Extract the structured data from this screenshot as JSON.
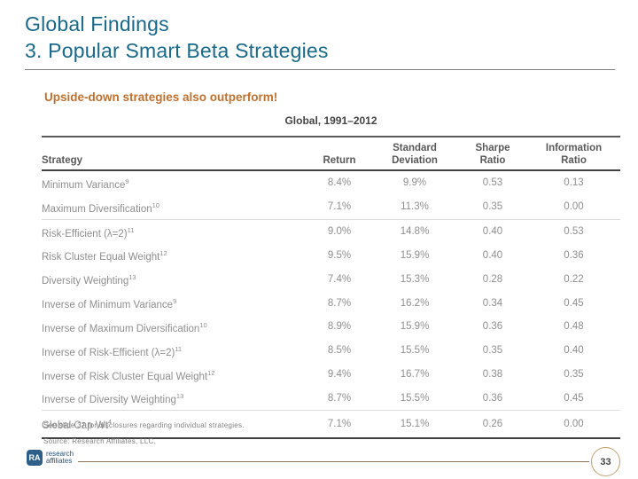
{
  "header": {
    "title_line1": "Global Findings",
    "title_line2": "3. Popular Smart Beta Strategies"
  },
  "subtitle": "Upside-down strategies also outperform!",
  "chart_data": {
    "type": "table",
    "title": "Global, 1991–2012",
    "columns": [
      "Strategy",
      "Return",
      "Standard\nDeviation",
      "Sharpe\nRatio",
      "Information\nRatio"
    ],
    "rows": [
      {
        "strategy": "Minimum Variance",
        "sup": "9",
        "values": [
          "8.4%",
          "9.9%",
          "0.53",
          "0.13"
        ],
        "group_start": false
      },
      {
        "strategy": "Maximum Diversification",
        "sup": "10",
        "values": [
          "7.1%",
          "11.3%",
          "0.35",
          "0.00"
        ],
        "group_start": false
      },
      {
        "strategy": "Risk-Efficient (λ=2)",
        "sup": "11",
        "values": [
          "9.0%",
          "14.8%",
          "0.40",
          "0.53"
        ],
        "group_start": true
      },
      {
        "strategy": "Risk Cluster Equal Weight",
        "sup": "12",
        "values": [
          "9.5%",
          "15.9%",
          "0.40",
          "0.36"
        ],
        "group_start": false
      },
      {
        "strategy": "Diversity Weighting",
        "sup": "13",
        "values": [
          "7.4%",
          "15.3%",
          "0.28",
          "0.22"
        ],
        "group_start": false
      },
      {
        "strategy": "Inverse of Minimum Variance",
        "sup": "9",
        "values": [
          "8.7%",
          "16.2%",
          "0.34",
          "0.45"
        ],
        "group_start": false
      },
      {
        "strategy": "Inverse of Maximum Diversification",
        "sup": "10",
        "values": [
          "8.9%",
          "15.9%",
          "0.36",
          "0.48"
        ],
        "group_start": false
      },
      {
        "strategy": "Inverse of Risk-Efficient (λ=2)",
        "sup": "11",
        "values": [
          "8.5%",
          "15.5%",
          "0.35",
          "0.40"
        ],
        "group_start": false
      },
      {
        "strategy": "Inverse of Risk Cluster Equal Weight",
        "sup": "12",
        "values": [
          "9.4%",
          "16.7%",
          "0.38",
          "0.35"
        ],
        "group_start": false
      },
      {
        "strategy": "Inverse of Diversity Weighting",
        "sup": "13",
        "values": [
          "8.7%",
          "15.5%",
          "0.36",
          "0.45"
        ],
        "group_start": false
      },
      {
        "strategy": "Global Cap Wt",
        "sup": "4",
        "values": [
          "7.1%",
          "15.1%",
          "0.26",
          "0.00"
        ],
        "group_start": true
      }
    ]
  },
  "footnotes": {
    "line1": "See slide 37 for disclosures regarding individual strategies.",
    "line2": "Source: Research Affiliates, LLC."
  },
  "footer": {
    "logo_mark": "RA",
    "logo_line1": "research",
    "logo_line2": "affiliates",
    "page_number": "33"
  },
  "colors": {
    "title_teal": "#18698C",
    "accent_orange": "#C0712F",
    "table_text_gray": "#8F8F8F",
    "header_text_gray": "#595959",
    "footer_line_tan": "#8C7355",
    "page_circle_tan": "#C2A06E",
    "logo_blue": "#2E5F8A"
  }
}
